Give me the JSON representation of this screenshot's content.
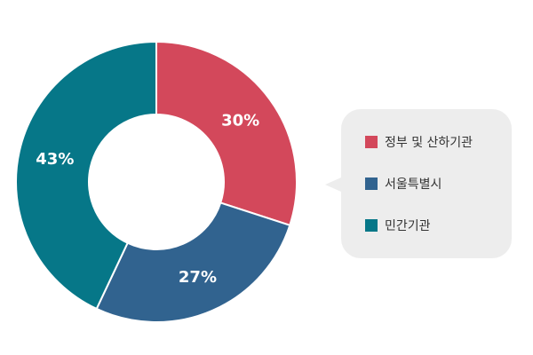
{
  "chart_data": {
    "type": "pie",
    "labels": [
      "정부 및 산하기관",
      "서울특별시",
      "민간기관"
    ],
    "values": [
      30,
      27,
      43
    ],
    "value_labels": [
      "30%",
      "27%",
      "43%"
    ],
    "colors": [
      "#d3485b",
      "#31638f",
      "#067788"
    ],
    "donut": true,
    "legend_position": "right"
  },
  "legend": {
    "items": [
      {
        "label": "정부 및 산하기관",
        "color": "#d3485b"
      },
      {
        "label": "서울특별시",
        "color": "#31638f"
      },
      {
        "label": "민간기관",
        "color": "#067788"
      }
    ]
  }
}
